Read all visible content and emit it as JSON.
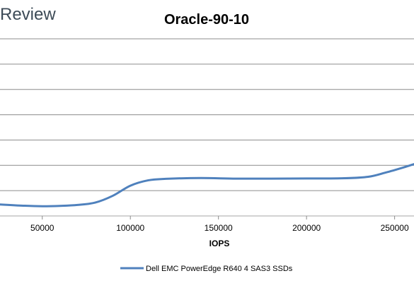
{
  "brand": "Review",
  "chart_data": {
    "type": "line",
    "title": "Oracle-90-10",
    "xlabel": "IOPS",
    "ylabel": "",
    "xlim": [
      26000,
      261000
    ],
    "x_ticks": [
      50000,
      100000,
      150000,
      200000,
      250000
    ],
    "y_gridlines": 8,
    "grid": true,
    "legend_position": "bottom",
    "series": [
      {
        "name": "Dell EMC PowerEdge R640 4 SAS3 SSDs",
        "color": "#4f81bd",
        "points": [
          [
            26000,
            0.455
          ],
          [
            40000,
            0.403
          ],
          [
            50000,
            0.384
          ],
          [
            60000,
            0.398
          ],
          [
            70000,
            0.435
          ],
          [
            80000,
            0.528
          ],
          [
            90000,
            0.797
          ],
          [
            100000,
            1.197
          ],
          [
            110000,
            1.407
          ],
          [
            120000,
            1.467
          ],
          [
            140000,
            1.498
          ],
          [
            160000,
            1.474
          ],
          [
            180000,
            1.475
          ],
          [
            200000,
            1.48
          ],
          [
            220000,
            1.487
          ],
          [
            235000,
            1.547
          ],
          [
            245000,
            1.716
          ],
          [
            255000,
            1.916
          ],
          [
            261000,
            2.049
          ]
        ]
      }
    ]
  }
}
